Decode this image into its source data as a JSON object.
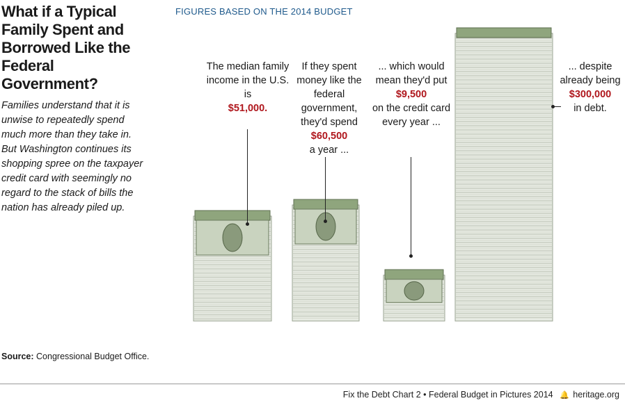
{
  "title": "What if a Typical Family Spent and Borrowed Like the Federal Government?",
  "intro": "Families understand that it is unwise to repeatedly spend much more than they take in. But Washington continues its shopping spree on the taxpayer credit card with seemingly no regard to the stack of bills the nation has already piled up.",
  "figures_label": "FIGURES BASED ON THE 2014 BUDGET",
  "source_label": "Source:",
  "source_text": "Congressional Budget Office.",
  "footer": {
    "left": "Fix the Debt Chart 2",
    "sep": "•",
    "middle": "Federal Budget in Pictures 2014",
    "site": "heritage.org"
  },
  "colors": {
    "highlight": "#b0181e",
    "header_blue": "#1f5a8c",
    "money_green": "#8fa57d"
  },
  "chart_data": {
    "type": "bar",
    "categories": [
      "Median family income",
      "Spending",
      "Borrowing",
      "Debt"
    ],
    "values": [
      51000,
      60500,
      9500,
      300000
    ],
    "annotations": [
      {
        "pre": "The median family income in the U.S. is",
        "amount": "$51,000.",
        "post": ""
      },
      {
        "pre": "If they spent money like the federal government, they'd spend",
        "amount": "$60,500",
        "post": "a year ..."
      },
      {
        "pre": "... which would mean they'd put",
        "amount": "$9,500",
        "post": "on the credit card every year ..."
      },
      {
        "pre": "... despite already being",
        "amount": "$300,000",
        "post": "in debt."
      }
    ]
  }
}
